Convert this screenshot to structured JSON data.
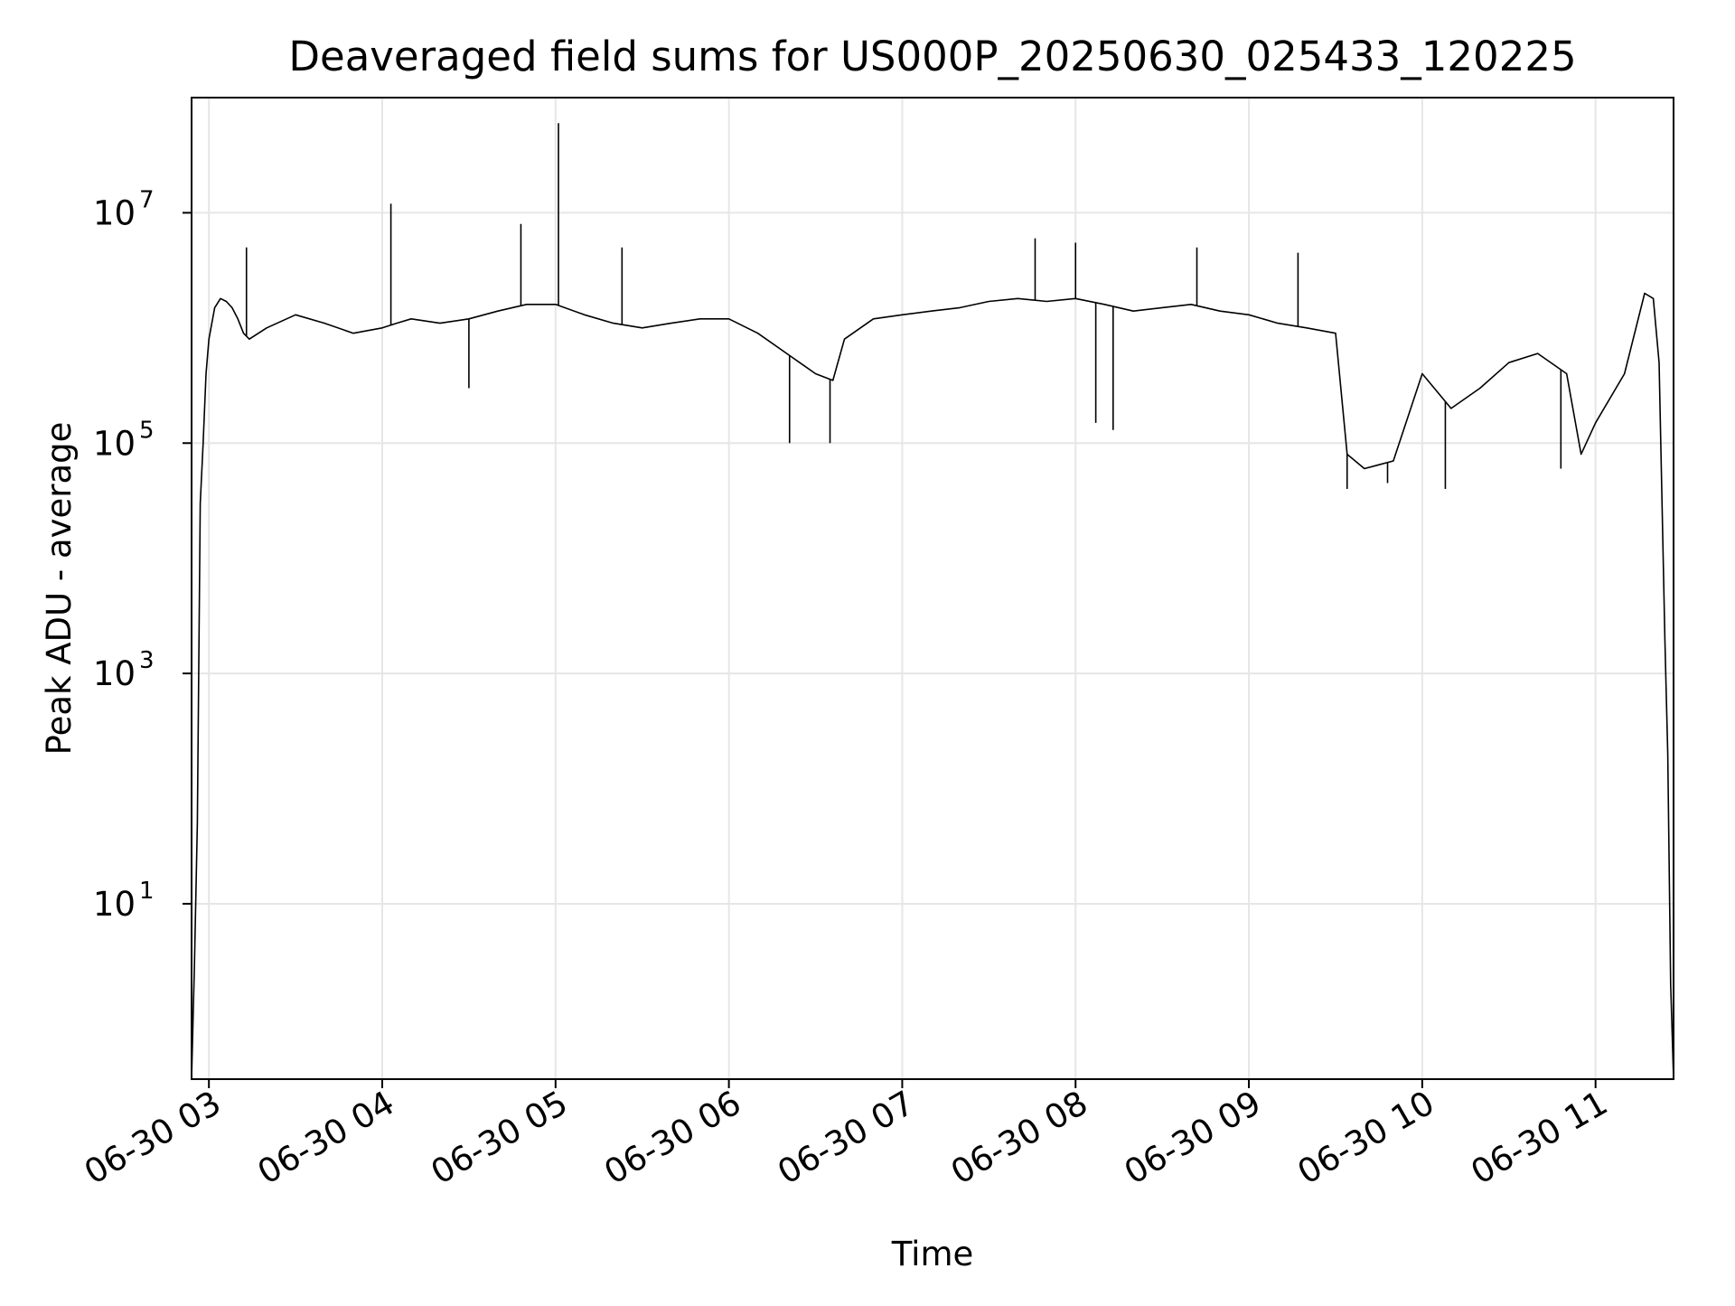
{
  "chart_data": {
    "type": "line",
    "title": "Deaveraged field sums for US000P_20250630_025433_120225",
    "xlabel": "Time",
    "ylabel": "Peak ADU - average",
    "yscale": "log",
    "grid": true,
    "ylim": [
      0.3,
      100000000
    ],
    "xlim": [
      "06-30 02:54",
      "06-30 11:27"
    ],
    "x_ticks": [
      {
        "t": "06-30 03:00",
        "label": "06-30 03"
      },
      {
        "t": "06-30 04:00",
        "label": "06-30 04"
      },
      {
        "t": "06-30 05:00",
        "label": "06-30 05"
      },
      {
        "t": "06-30 06:00",
        "label": "06-30 06"
      },
      {
        "t": "06-30 07:00",
        "label": "06-30 07"
      },
      {
        "t": "06-30 08:00",
        "label": "06-30 08"
      },
      {
        "t": "06-30 09:00",
        "label": "06-30 09"
      },
      {
        "t": "06-30 10:00",
        "label": "06-30 10"
      },
      {
        "t": "06-30 11:00",
        "label": "06-30 11"
      }
    ],
    "y_ticks": [
      {
        "value": 10,
        "base": "10",
        "exp": "1"
      },
      {
        "value": 1000,
        "base": "10",
        "exp": "3"
      },
      {
        "value": 100000,
        "base": "10",
        "exp": "5"
      },
      {
        "value": 10000000,
        "base": "10",
        "exp": "7"
      }
    ],
    "series": [
      {
        "color": "#000000",
        "x": [
          "06-30 02:54",
          "06-30 02:55",
          "06-30 02:56",
          "06-30 02:57",
          "06-30 02:58",
          "06-30 02:59",
          "06-30 03:00",
          "06-30 03:02",
          "06-30 03:04",
          "06-30 03:06",
          "06-30 03:08",
          "06-30 03:10",
          "06-30 03:12",
          "06-30 03:14",
          "06-30 03:20",
          "06-30 03:30",
          "06-30 03:40",
          "06-30 03:50",
          "06-30 04:00",
          "06-30 04:05",
          "06-30 04:10",
          "06-30 04:20",
          "06-30 04:30",
          "06-30 04:40",
          "06-30 04:50",
          "06-30 05:00",
          "06-30 05:10",
          "06-30 05:20",
          "06-30 05:30",
          "06-30 05:40",
          "06-30 05:50",
          "06-30 06:00",
          "06-30 06:10",
          "06-30 06:20",
          "06-30 06:30",
          "06-30 06:36",
          "06-30 06:40",
          "06-30 06:50",
          "06-30 07:00",
          "06-30 07:10",
          "06-30 07:20",
          "06-30 07:30",
          "06-30 07:40",
          "06-30 07:50",
          "06-30 08:00",
          "06-30 08:10",
          "06-30 08:20",
          "06-30 08:30",
          "06-30 08:40",
          "06-30 08:50",
          "06-30 09:00",
          "06-30 09:10",
          "06-30 09:20",
          "06-30 09:30",
          "06-30 09:34",
          "06-30 09:40",
          "06-30 09:50",
          "06-30 10:00",
          "06-30 10:10",
          "06-30 10:20",
          "06-30 10:30",
          "06-30 10:40",
          "06-30 10:50",
          "06-30 10:55",
          "06-30 11:00",
          "06-30 11:10",
          "06-30 11:17",
          "06-30 11:20",
          "06-30 11:22",
          "06-30 11:24",
          "06-30 11:25",
          "06-30 11:26",
          "06-30 11:27"
        ],
        "y": [
          0.3,
          3,
          50,
          30000,
          100000,
          400000,
          800000,
          1500000,
          1800000,
          1700000,
          1500000,
          1200000,
          900000,
          800000,
          1000000,
          1300000,
          1100000,
          900000,
          1000000,
          1100000,
          1200000,
          1100000,
          1200000,
          1400000,
          1600000,
          1600000,
          1300000,
          1100000,
          1000000,
          1100000,
          1200000,
          1200000,
          900000,
          600000,
          400000,
          350000,
          800000,
          1200000,
          1300000,
          1400000,
          1500000,
          1700000,
          1800000,
          1700000,
          1800000,
          1600000,
          1400000,
          1500000,
          1600000,
          1400000,
          1300000,
          1100000,
          1000000,
          900000,
          80000,
          60000,
          70000,
          400000,
          200000,
          300000,
          500000,
          600000,
          400000,
          80000,
          150000,
          400000,
          2000000,
          1800000,
          500000,
          2000,
          200,
          2,
          0.3
        ]
      }
    ],
    "spikes": [
      {
        "x": "06-30 03:13",
        "y": 5000000
      },
      {
        "x": "06-30 04:03",
        "y": 12000000
      },
      {
        "x": "06-30 04:48",
        "y": 8000000
      },
      {
        "x": "06-30 05:01",
        "y": 60000000
      },
      {
        "x": "06-30 05:23",
        "y": 5000000
      },
      {
        "x": "06-30 07:46",
        "y": 6000000
      },
      {
        "x": "06-30 08:00",
        "y": 5500000
      },
      {
        "x": "06-30 08:42",
        "y": 5000000
      },
      {
        "x": "06-30 09:17",
        "y": 4500000
      }
    ],
    "dips": [
      {
        "x": "06-30 04:30",
        "y": 300000
      },
      {
        "x": "06-30 06:21",
        "y": 100000
      },
      {
        "x": "06-30 06:35",
        "y": 100000
      },
      {
        "x": "06-30 08:07",
        "y": 150000
      },
      {
        "x": "06-30 08:13",
        "y": 130000
      },
      {
        "x": "06-30 09:34",
        "y": 40000
      },
      {
        "x": "06-30 09:48",
        "y": 45000
      },
      {
        "x": "06-30 10:08",
        "y": 40000
      },
      {
        "x": "06-30 10:48",
        "y": 60000
      }
    ]
  }
}
